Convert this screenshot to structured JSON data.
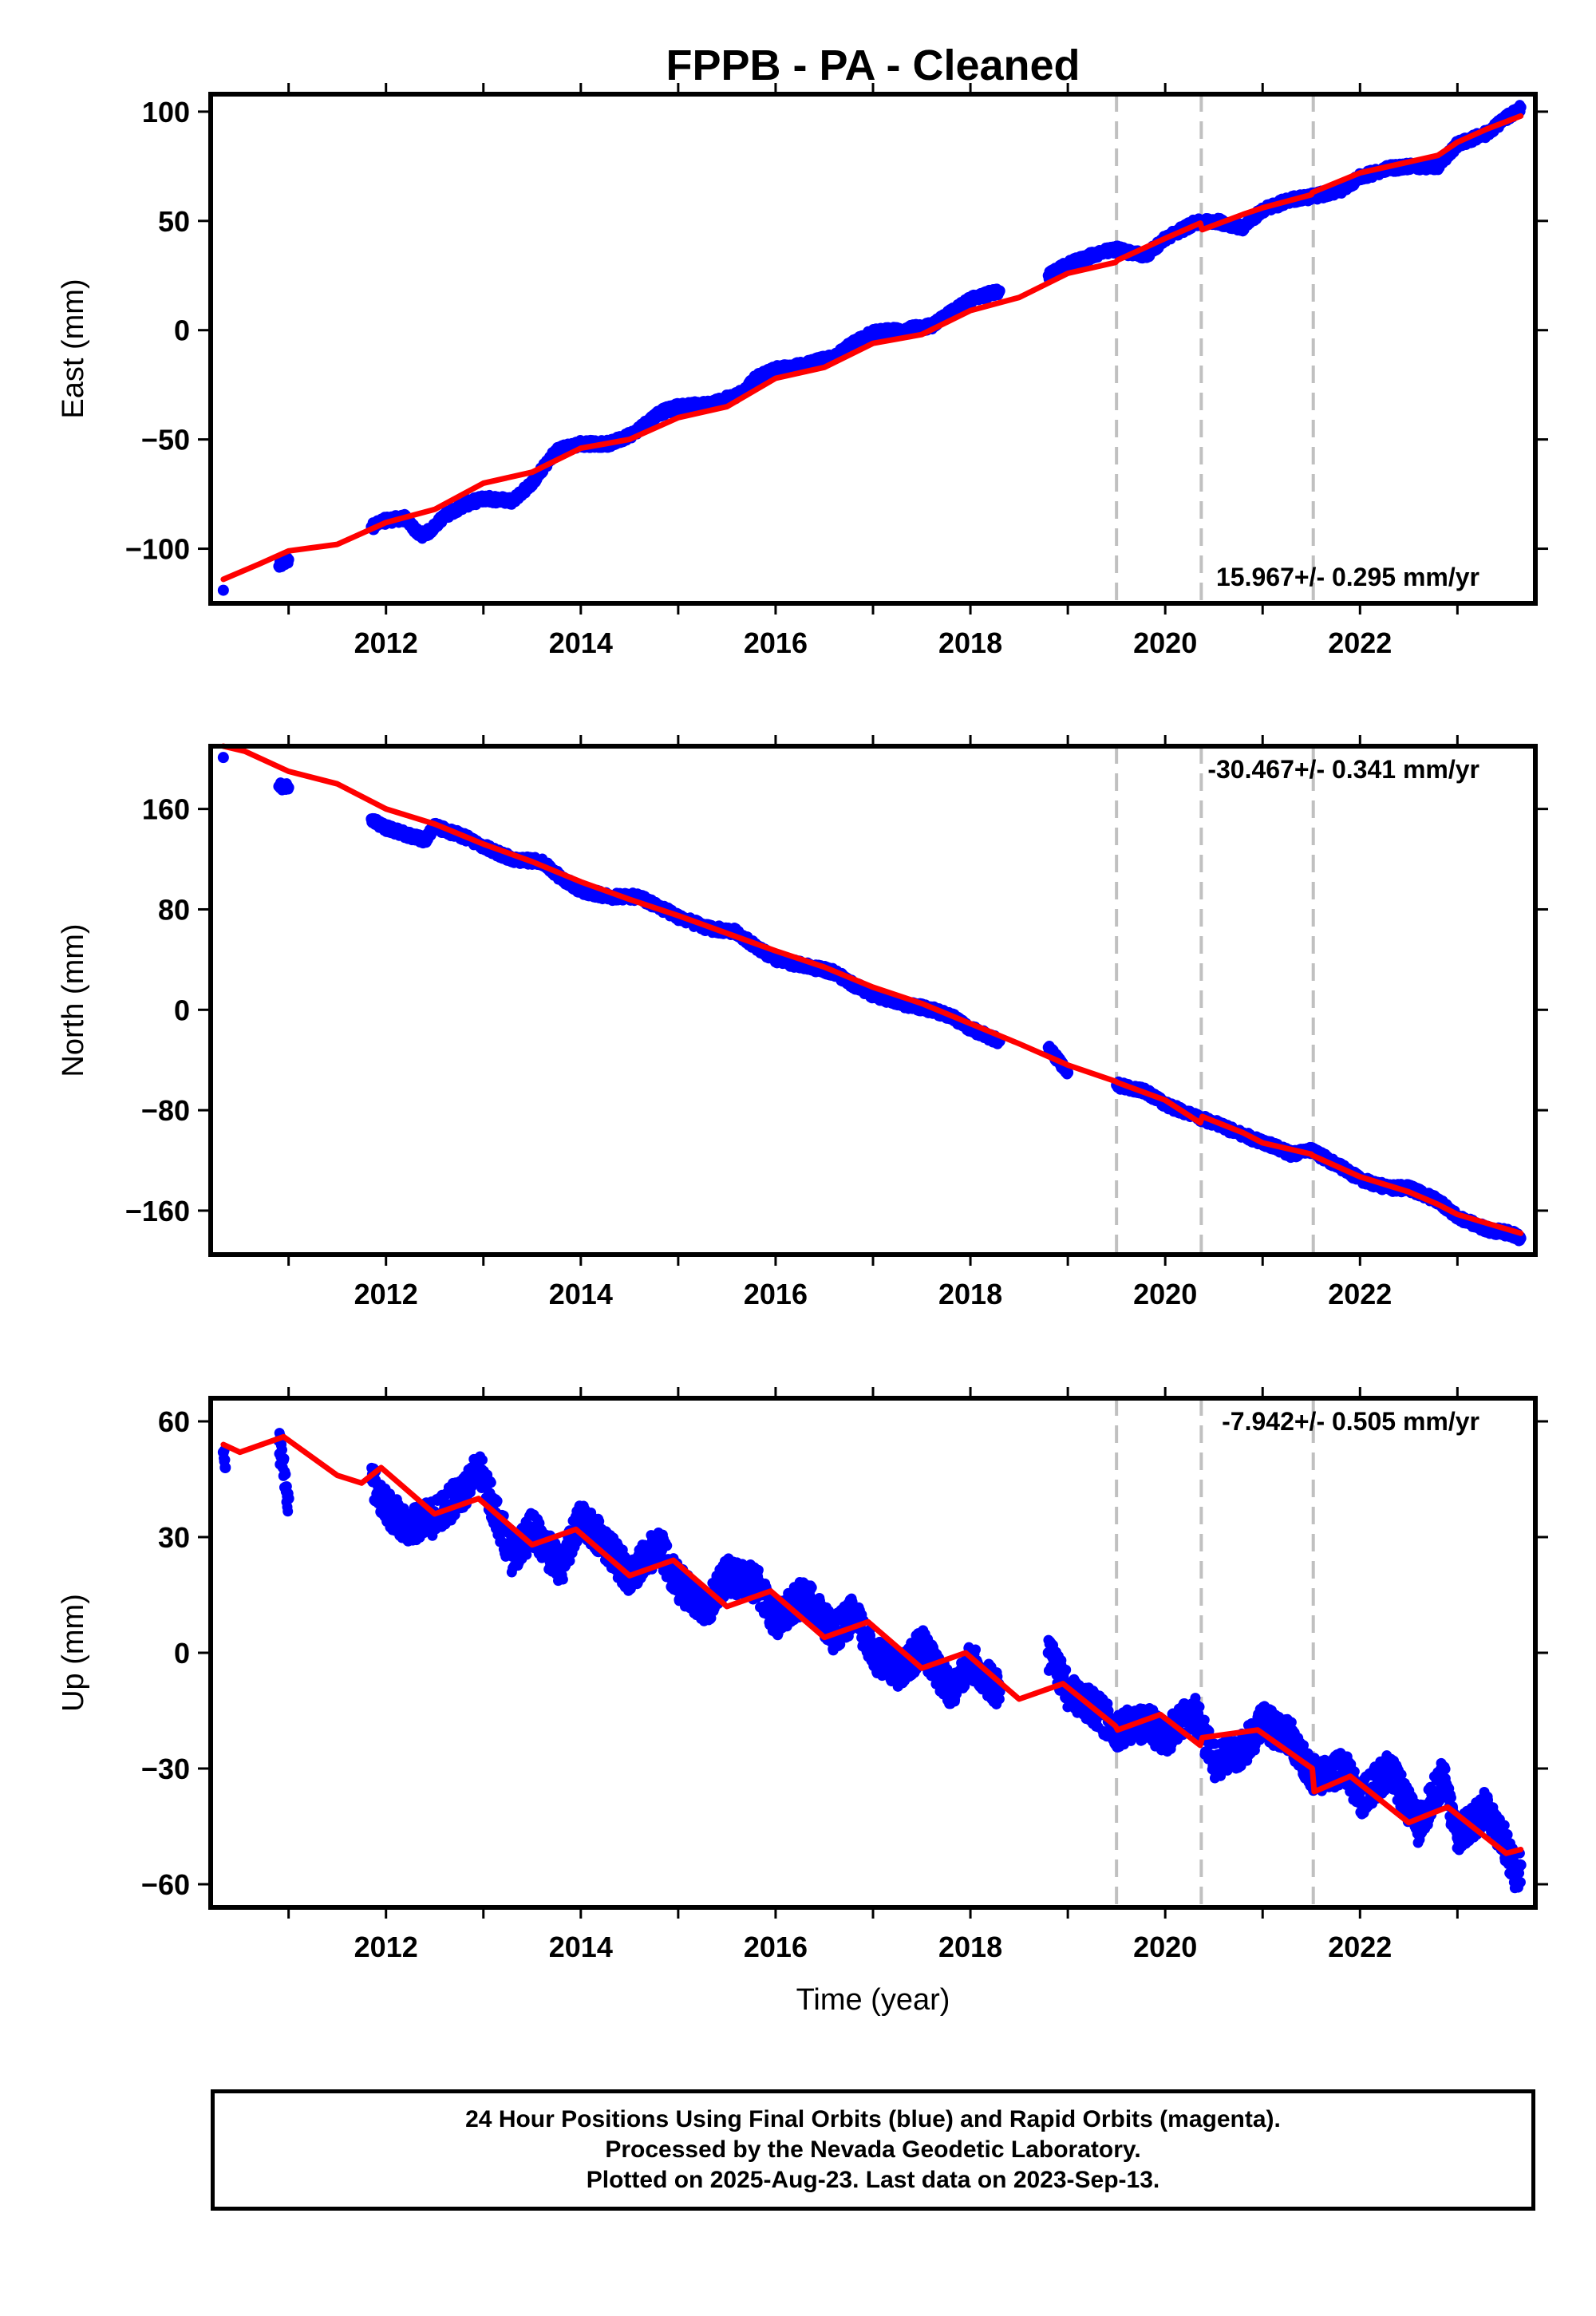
{
  "chart_data": [
    {
      "type": "scatter",
      "title": "FPPB  - PA - Cleaned",
      "xlabel": "",
      "ylabel": "East (mm)",
      "xlim": [
        2010.2,
        2023.8
      ],
      "ylim": [
        -125,
        108
      ],
      "xticks": [
        2012,
        2014,
        2016,
        2018,
        2020,
        2022
      ],
      "yticks": [
        -100,
        -50,
        0,
        50,
        100
      ],
      "rate_label": "15.967+/- 0.295 mm/yr",
      "vlines": [
        2019.5,
        2020.37,
        2021.52
      ],
      "grid": false,
      "series": [
        {
          "name": "Final Orbits",
          "color": "#0000ff",
          "style": "points",
          "x": [
            2010.33,
            2010.9,
            2011.0,
            2011.85,
            2012.0,
            2012.2,
            2012.35,
            2012.45,
            2012.6,
            2012.8,
            2013.0,
            2013.3,
            2013.5,
            2013.75,
            2014.0,
            2014.3,
            2014.55,
            2014.8,
            2015.0,
            2015.3,
            2015.6,
            2015.8,
            2016.0,
            2016.3,
            2016.6,
            2016.8,
            2017.0,
            2017.3,
            2017.6,
            2017.8,
            2018.0,
            2018.3,
            2018.8,
            2019.0,
            2019.3,
            2019.5,
            2019.8,
            2020.0,
            2020.3,
            2020.5,
            2020.8,
            2021.0,
            2021.3,
            2021.5,
            2021.8,
            2022.0,
            2022.3,
            2022.5,
            2022.8,
            2023.0,
            2023.3,
            2023.5,
            2023.65
          ],
          "y": [
            -119,
            -108,
            -105,
            -90,
            -87,
            -86,
            -94,
            -92,
            -85,
            -80,
            -77,
            -78,
            -70,
            -55,
            -52,
            -52,
            -47,
            -38,
            -35,
            -34,
            -30,
            -22,
            -18,
            -16,
            -12,
            -6,
            -1,
            0,
            2,
            8,
            14,
            18,
            25,
            30,
            35,
            37,
            34,
            42,
            49,
            50,
            47,
            55,
            60,
            61,
            64,
            70,
            74,
            75,
            75,
            85,
            90,
            97,
            102
          ]
        },
        {
          "name": "Model",
          "color": "#ff0000",
          "style": "line",
          "x": [
            2010.33,
            2010.7,
            2011.0,
            2011.5,
            2012.0,
            2012.5,
            2013.0,
            2013.5,
            2014.0,
            2014.5,
            2015.0,
            2015.5,
            2016.0,
            2016.5,
            2017.0,
            2017.5,
            2018.0,
            2018.5,
            2019.0,
            2019.49,
            2019.51,
            2020.0,
            2020.36,
            2020.38,
            2020.8,
            2021.0,
            2021.5,
            2021.51,
            2022.0,
            2022.5,
            2022.8,
            2023.0,
            2023.3,
            2023.65
          ],
          "y": [
            -114,
            -107,
            -101,
            -98,
            -88,
            -82,
            -70,
            -65,
            -54,
            -50,
            -40,
            -35,
            -22,
            -17,
            -6,
            -2,
            9,
            15,
            26,
            31,
            32,
            42,
            49,
            46,
            53,
            56,
            62,
            63,
            72,
            77,
            80,
            86,
            92,
            98
          ]
        }
      ]
    },
    {
      "type": "scatter",
      "title": "",
      "xlabel": "",
      "ylabel": "North (mm)",
      "xlim": [
        2010.2,
        2023.8
      ],
      "ylim": [
        -195,
        210
      ],
      "xticks": [
        2012,
        2014,
        2016,
        2018,
        2020,
        2022
      ],
      "yticks": [
        -160,
        -80,
        0,
        80,
        160
      ],
      "rate_label": "-30.467+/- 0.341 mm/yr",
      "vlines": [
        2019.5,
        2020.37,
        2021.52
      ],
      "grid": false,
      "series": [
        {
          "name": "Final Orbits",
          "color": "#0000ff",
          "style": "points",
          "x": [
            2010.33,
            2010.9,
            2011.0,
            2011.85,
            2012.0,
            2012.2,
            2012.4,
            2012.5,
            2012.8,
            2013.0,
            2013.3,
            2013.6,
            2013.8,
            2014.0,
            2014.3,
            2014.6,
            2014.8,
            2015.0,
            2015.3,
            2015.6,
            2015.8,
            2016.0,
            2016.3,
            2016.6,
            2016.8,
            2017.0,
            2017.3,
            2017.6,
            2017.8,
            2018.0,
            2018.3,
            2018.8,
            2019.0,
            2019.5,
            2019.8,
            2020.0,
            2020.3,
            2020.5,
            2020.8,
            2021.0,
            2021.3,
            2021.5,
            2021.8,
            2022.0,
            2022.3,
            2022.5,
            2022.8,
            2023.0,
            2023.3,
            2023.55,
            2023.65
          ],
          "y": [
            201,
            178,
            177,
            152,
            145,
            140,
            135,
            146,
            138,
            130,
            120,
            118,
            105,
            95,
            90,
            90,
            82,
            74,
            65,
            62,
            50,
            40,
            35,
            30,
            20,
            12,
            5,
            0,
            -5,
            -15,
            -25,
            -30,
            -50,
            -60,
            -65,
            -75,
            -85,
            -90,
            -100,
            -105,
            -115,
            -112,
            -125,
            -135,
            -142,
            -142,
            -152,
            -165,
            -175,
            -178,
            -182
          ]
        },
        {
          "name": "Model",
          "color": "#ff0000",
          "style": "line",
          "x": [
            2010.33,
            2010.55,
            2011.0,
            2011.5,
            2012.0,
            2012.5,
            2013.0,
            2013.5,
            2014.0,
            2014.5,
            2015.0,
            2015.5,
            2016.0,
            2016.5,
            2017.0,
            2017.5,
            2018.0,
            2018.5,
            2019.0,
            2019.49,
            2019.51,
            2020.0,
            2020.36,
            2020.38,
            2020.8,
            2021.0,
            2021.5,
            2021.51,
            2022.0,
            2022.5,
            2022.8,
            2023.0,
            2023.3,
            2023.65
          ],
          "y": [
            210,
            206,
            190,
            180,
            160,
            148,
            132,
            118,
            102,
            88,
            75,
            61,
            47,
            34,
            18,
            5,
            -11,
            -27,
            -44,
            -57,
            -58,
            -72,
            -90,
            -85,
            -98,
            -106,
            -115,
            -116,
            -133,
            -145,
            -155,
            -163,
            -170,
            -178
          ]
        }
      ]
    },
    {
      "type": "scatter",
      "title": "",
      "xlabel": "Time (year)",
      "ylabel": "Up (mm)",
      "xlim": [
        2010.2,
        2023.8
      ],
      "ylim": [
        -66,
        66
      ],
      "xticks": [
        2012,
        2014,
        2016,
        2018,
        2020,
        2022
      ],
      "yticks": [
        -60,
        -30,
        0,
        30,
        60
      ],
      "rate_label": "-7.942+/- 0.505 mm/yr",
      "vlines": [
        2019.5,
        2020.37,
        2021.52
      ],
      "grid": false,
      "series": [
        {
          "name": "Final Orbits",
          "color": "#0000ff",
          "style": "points",
          "x": [
            2010.33,
            2010.35,
            2010.9,
            2011.0,
            2011.85,
            2012.0,
            2012.2,
            2012.5,
            2012.8,
            2012.95,
            2013.3,
            2013.5,
            2013.8,
            2014.0,
            2014.2,
            2014.5,
            2014.8,
            2015.0,
            2015.3,
            2015.5,
            2015.8,
            2016.0,
            2016.3,
            2016.6,
            2016.8,
            2017.0,
            2017.3,
            2017.5,
            2017.8,
            2018.0,
            2018.3,
            2018.8,
            2019.0,
            2019.3,
            2019.5,
            2019.8,
            2020.0,
            2020.3,
            2020.5,
            2020.8,
            2021.0,
            2021.3,
            2021.5,
            2021.85,
            2022.0,
            2022.3,
            2022.6,
            2022.85,
            2023.0,
            2023.3,
            2023.5,
            2023.6,
            2023.65
          ],
          "y": [
            52,
            48,
            55,
            40,
            45,
            38,
            33,
            35,
            42,
            48,
            25,
            32,
            22,
            35,
            30,
            20,
            28,
            18,
            12,
            20,
            18,
            8,
            15,
            5,
            10,
            0,
            -5,
            2,
            -10,
            -2,
            -10,
            0,
            -10,
            -15,
            -20,
            -18,
            -22,
            -15,
            -28,
            -25,
            -18,
            -22,
            -32,
            -30,
            -38,
            -30,
            -45,
            -32,
            -48,
            -40,
            -50,
            -58,
            -55
          ]
        },
        {
          "name": "Model",
          "color": "#ff0000",
          "style": "line",
          "x": [
            2010.33,
            2010.5,
            2010.95,
            2011.5,
            2011.75,
            2011.95,
            2012.5,
            2012.95,
            2013.5,
            2013.95,
            2014.5,
            2014.95,
            2015.5,
            2015.95,
            2016.5,
            2016.95,
            2017.5,
            2017.95,
            2018.5,
            2018.95,
            2019.49,
            2019.51,
            2019.95,
            2020.36,
            2020.38,
            2020.95,
            2021.51,
            2021.53,
            2021.9,
            2022.5,
            2022.9,
            2023.5,
            2023.65
          ],
          "y": [
            54,
            52,
            56,
            46,
            44,
            48,
            36,
            40,
            28,
            32,
            20,
            24,
            12,
            16,
            4,
            8,
            -4,
            0,
            -12,
            -8,
            -19,
            -20,
            -16,
            -24,
            -22,
            -20,
            -30,
            -36,
            -32,
            -44,
            -40,
            -52,
            -51
          ]
        }
      ]
    }
  ],
  "footer": {
    "line1": "24 Hour Positions Using Final Orbits (blue) and Rapid Orbits (magenta).",
    "line2": "Processed by the Nevada Geodetic Laboratory.",
    "line3": "Plotted on 2025-Aug-23. Last data on 2023-Sep-13."
  }
}
